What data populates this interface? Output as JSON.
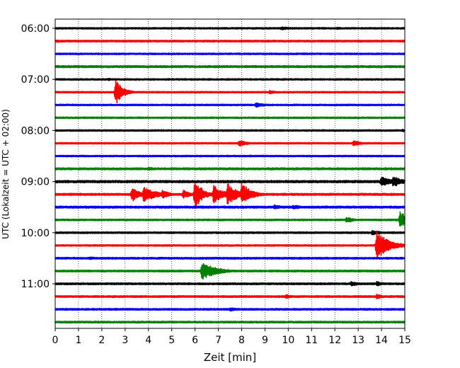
{
  "chart_data": {
    "type": "line",
    "xlabel": "Zeit  [min]",
    "ylabel": "UTC (Lokalzeit = UTC + 02:00)",
    "xlim": [
      0,
      15
    ],
    "x_ticks": [
      "0",
      "1",
      "2",
      "3",
      "4",
      "5",
      "6",
      "7",
      "8",
      "9",
      "10",
      "11",
      "12",
      "13",
      "14",
      "15"
    ],
    "y_ticks": [
      "06:00",
      "07:00",
      "08:00",
      "09:00",
      "10:00",
      "11:00"
    ],
    "grid": "vertical-dotted",
    "trace_interval_min": 15,
    "series": [
      {
        "start": "06:00",
        "color": "#000000",
        "noise": 0.12,
        "events": [
          {
            "t": 9.7,
            "amp": 0.25,
            "dur": 0.5
          },
          {
            "t": 12.1,
            "amp": 0.2,
            "dur": 0.3
          }
        ]
      },
      {
        "start": "06:15",
        "color": "#ff0000",
        "noise": 0.14,
        "events": [
          {
            "t": 0.1,
            "amp": 0.25,
            "dur": 0.2
          },
          {
            "t": 3.0,
            "amp": 0.15,
            "dur": 0.3
          }
        ]
      },
      {
        "start": "06:30",
        "color": "#0000ff",
        "noise": 0.12,
        "events": []
      },
      {
        "start": "06:45",
        "color": "#008000",
        "noise": 0.16,
        "events": [
          {
            "t": 8.2,
            "amp": 0.2,
            "dur": 0.3
          }
        ]
      },
      {
        "start": "07:00",
        "color": "#000000",
        "noise": 0.12,
        "events": [
          {
            "t": 2.3,
            "amp": 0.2,
            "dur": 0.3
          }
        ]
      },
      {
        "start": "07:15",
        "color": "#ff0000",
        "noise": 0.12,
        "events": [
          {
            "t": 2.6,
            "amp": 2.0,
            "dur": 0.3
          },
          {
            "t": 9.2,
            "amp": 0.3,
            "dur": 0.3
          }
        ]
      },
      {
        "start": "07:30",
        "color": "#0000ff",
        "noise": 0.12,
        "events": [
          {
            "t": 8.6,
            "amp": 0.4,
            "dur": 0.4
          }
        ]
      },
      {
        "start": "07:45",
        "color": "#008000",
        "noise": 0.12,
        "events": []
      },
      {
        "start": "08:00",
        "color": "#000000",
        "noise": 0.12,
        "events": [
          {
            "t": 14.9,
            "amp": 0.2,
            "dur": 0.2
          }
        ]
      },
      {
        "start": "08:15",
        "color": "#ff0000",
        "noise": 0.12,
        "events": [
          {
            "t": 7.9,
            "amp": 0.55,
            "dur": 0.3
          },
          {
            "t": 12.8,
            "amp": 0.5,
            "dur": 0.3
          }
        ]
      },
      {
        "start": "08:30",
        "color": "#0000ff",
        "noise": 0.12,
        "events": []
      },
      {
        "start": "08:45",
        "color": "#008000",
        "noise": 0.16,
        "events": [
          {
            "t": 4.0,
            "amp": 0.25,
            "dur": 0.5
          },
          {
            "t": 9.7,
            "amp": 0.2,
            "dur": 0.3
          }
        ]
      },
      {
        "start": "09:00",
        "color": "#000000",
        "noise": 0.18,
        "events": [
          {
            "t": 14.0,
            "amp": 0.9,
            "dur": 0.4
          },
          {
            "t": 14.5,
            "amp": 0.9,
            "dur": 0.4
          }
        ]
      },
      {
        "start": "09:15",
        "color": "#ff0000",
        "noise": 0.16,
        "events": [
          {
            "t": 3.3,
            "amp": 1.2,
            "dur": 0.3
          },
          {
            "t": 3.8,
            "amp": 1.3,
            "dur": 0.5
          },
          {
            "t": 4.6,
            "amp": 0.7,
            "dur": 0.3
          },
          {
            "t": 5.5,
            "amp": 0.7,
            "dur": 0.3
          },
          {
            "t": 6.0,
            "amp": 2.5,
            "dur": 0.3
          },
          {
            "t": 6.8,
            "amp": 1.5,
            "dur": 0.4
          },
          {
            "t": 7.4,
            "amp": 1.8,
            "dur": 0.4
          },
          {
            "t": 8.0,
            "amp": 1.7,
            "dur": 0.4
          },
          {
            "t": 8.2,
            "amp": 1.2,
            "dur": 0.3
          }
        ]
      },
      {
        "start": "09:30",
        "color": "#0000ff",
        "noise": 0.16,
        "events": [
          {
            "t": 9.4,
            "amp": 0.35,
            "dur": 0.4
          },
          {
            "t": 10.2,
            "amp": 0.35,
            "dur": 0.5
          }
        ]
      },
      {
        "start": "09:45",
        "color": "#008000",
        "noise": 0.13,
        "events": [
          {
            "t": 12.5,
            "amp": 0.5,
            "dur": 0.3
          },
          {
            "t": 14.8,
            "amp": 1.3,
            "dur": 0.4
          }
        ]
      },
      {
        "start": "10:00",
        "color": "#000000",
        "noise": 0.13,
        "events": [
          {
            "t": 13.6,
            "amp": 0.4,
            "dur": 0.4
          }
        ]
      },
      {
        "start": "10:15",
        "color": "#ff0000",
        "noise": 0.12,
        "events": [
          {
            "t": 13.8,
            "amp": 2.3,
            "dur": 0.5
          }
        ]
      },
      {
        "start": "10:30",
        "color": "#0000ff",
        "noise": 0.14,
        "events": [
          {
            "t": 1.5,
            "amp": 0.25,
            "dur": 0.3
          }
        ]
      },
      {
        "start": "10:45",
        "color": "#008000",
        "noise": 0.14,
        "events": [
          {
            "t": 6.3,
            "amp": 1.4,
            "dur": 0.6
          }
        ]
      },
      {
        "start": "11:00",
        "color": "#000000",
        "noise": 0.14,
        "events": [
          {
            "t": 12.7,
            "amp": 0.4,
            "dur": 0.4
          },
          {
            "t": 13.8,
            "amp": 0.4,
            "dur": 0.3
          }
        ]
      },
      {
        "start": "11:15",
        "color": "#ff0000",
        "noise": 0.14,
        "events": [
          {
            "t": 9.9,
            "amp": 0.35,
            "dur": 0.3
          },
          {
            "t": 13.8,
            "amp": 0.4,
            "dur": 0.3
          }
        ]
      },
      {
        "start": "11:30",
        "color": "#0000ff",
        "noise": 0.14,
        "events": [
          {
            "t": 7.5,
            "amp": 0.3,
            "dur": 0.4
          }
        ]
      },
      {
        "start": "11:45",
        "color": "#008000",
        "noise": 0.14,
        "events": []
      }
    ]
  }
}
